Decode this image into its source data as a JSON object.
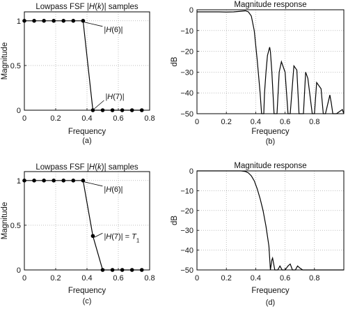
{
  "chart_data": [
    {
      "id": "a",
      "type": "line",
      "title_parts": [
        "Lowpass FSF |",
        "H",
        "(",
        "k",
        ")| samples"
      ],
      "xlabel": "Frequency",
      "ylabel": "Magnitude",
      "panel_label": "(a)",
      "xlim": [
        0,
        0.8
      ],
      "ylim": [
        0,
        1.1
      ],
      "xticks": [
        0,
        0.2,
        0.4,
        0.6,
        0.8
      ],
      "xtick_labels": [
        "0",
        "0.2",
        "0.4",
        "0.6",
        "0.8"
      ],
      "yticks": [
        0,
        0.5,
        1
      ],
      "ytick_labels": [
        "0",
        "0.5",
        "1"
      ],
      "grid": true,
      "markers": true,
      "series": [
        {
          "x": [
            0,
            0.0625,
            0.125,
            0.1875,
            0.25,
            0.3125,
            0.375,
            0.4375,
            0.5,
            0.5625,
            0.625,
            0.6875,
            0.75
          ],
          "y": [
            1,
            1,
            1,
            1,
            1,
            1,
            1,
            0,
            0,
            0,
            0,
            0,
            0
          ]
        }
      ],
      "annotations": [
        {
          "parts": [
            "|",
            "H",
            "(6)|"
          ],
          "x": 0.375,
          "y": 1
        },
        {
          "parts": [
            "|",
            "H",
            "(7)|"
          ],
          "x": 0.4375,
          "y": 0
        }
      ]
    },
    {
      "id": "b",
      "type": "line",
      "title": "Magnitude response",
      "xlabel": "Frequency",
      "ylabel": "dB",
      "panel_label": "(b)",
      "xlim": [
        0,
        1
      ],
      "ylim": [
        -50,
        0
      ],
      "xticks": [
        0,
        0.2,
        0.4,
        0.6,
        0.8
      ],
      "xtick_labels": [
        "0",
        "0.2",
        "0.4",
        "0.6",
        "0.8"
      ],
      "yticks": [
        0,
        -10,
        -20,
        -30,
        -40,
        -50
      ],
      "ytick_labels": [
        "0",
        "−10",
        "−20",
        "−30",
        "−40",
        "−50"
      ],
      "grid": true,
      "markers": false,
      "series": [
        {
          "x": [
            0,
            0.05,
            0.1,
            0.15,
            0.2,
            0.25,
            0.3,
            0.33,
            0.35,
            0.37,
            0.39,
            0.41,
            0.43,
            0.44,
            0.455,
            0.46,
            0.47,
            0.48,
            0.495,
            0.5,
            0.51,
            0.525,
            0.545,
            0.56,
            0.575,
            0.6,
            0.62,
            0.635,
            0.66,
            0.68,
            0.695,
            0.725,
            0.74,
            0.755,
            0.785,
            0.8,
            0.815,
            0.845,
            0.86,
            0.875,
            0.905,
            0.915,
            0.925,
            0.95,
            0.99,
            1.0
          ],
          "y": [
            -1,
            -1,
            -1,
            -1,
            -1.1,
            -1,
            -0.7,
            -0.5,
            -1,
            -3,
            -10,
            -24,
            -40,
            -50,
            -50,
            -40,
            -30,
            -22,
            -18,
            -20,
            -30,
            -50,
            -50,
            -30,
            -25,
            -30,
            -50,
            -50,
            -27,
            -29,
            -50,
            -50,
            -30,
            -33,
            -50,
            -50,
            -35,
            -38,
            -50,
            -50,
            -41,
            -45,
            -50,
            -50,
            -48,
            -50
          ]
        }
      ]
    },
    {
      "id": "c",
      "type": "line",
      "title_parts": [
        "Lowpass FSF |",
        "H",
        "(",
        "k",
        ")| samples"
      ],
      "xlabel": "Frequency",
      "ylabel": "Magnitude",
      "panel_label": "(c)",
      "xlim": [
        0,
        0.8
      ],
      "ylim": [
        0,
        1.1
      ],
      "xticks": [
        0,
        0.2,
        0.4,
        0.6,
        0.8
      ],
      "xtick_labels": [
        "0",
        "0.2",
        "0.4",
        "0.6",
        "0.8"
      ],
      "yticks": [
        0,
        0.5,
        1
      ],
      "ytick_labels": [
        "0",
        "0.5",
        "1"
      ],
      "grid": true,
      "markers": true,
      "series": [
        {
          "x": [
            0,
            0.0625,
            0.125,
            0.1875,
            0.25,
            0.3125,
            0.375,
            0.4375,
            0.5,
            0.5625,
            0.625,
            0.6875,
            0.75
          ],
          "y": [
            1,
            1,
            1,
            1,
            1,
            1,
            1,
            0.38,
            0,
            0,
            0,
            0,
            0
          ]
        }
      ],
      "annotations": [
        {
          "parts": [
            "|",
            "H",
            "(6)|"
          ],
          "x": 0.375,
          "y": 1
        },
        {
          "parts": [
            "|",
            "H",
            "(7)| = ",
            "T",
            "1"
          ],
          "x": 0.4375,
          "y": 0.38
        }
      ]
    },
    {
      "id": "d",
      "type": "line",
      "title": "Magnitude response",
      "xlabel": "Frequency",
      "ylabel": "dB",
      "panel_label": "(d)",
      "xlim": [
        0,
        1
      ],
      "ylim": [
        -50,
        0
      ],
      "xticks": [
        0,
        0.2,
        0.4,
        0.6,
        0.8
      ],
      "xtick_labels": [
        "0",
        "0.2",
        "0.4",
        "0.6",
        "0.8"
      ],
      "yticks": [
        0,
        -10,
        -20,
        -30,
        -40,
        -50
      ],
      "ytick_labels": [
        "0",
        "−10",
        "−20",
        "−30",
        "−40",
        "−50"
      ],
      "grid": true,
      "markers": false,
      "series": [
        {
          "x": [
            0,
            0.05,
            0.1,
            0.15,
            0.2,
            0.25,
            0.3,
            0.33,
            0.35,
            0.37,
            0.39,
            0.41,
            0.43,
            0.45,
            0.47,
            0.49,
            0.5,
            0.51,
            0.515,
            0.52,
            0.53,
            0.55,
            0.565,
            0.58,
            0.6,
            0.62,
            0.635,
            0.65,
            0.67,
            0.685,
            0.7,
            0.72,
            0.74,
            0.8,
            0.9,
            1.0
          ],
          "y": [
            0,
            0,
            0,
            0,
            0,
            0,
            0,
            -0.3,
            -1,
            -2.5,
            -5,
            -9,
            -14,
            -20,
            -28,
            -38,
            -50,
            -45,
            -44,
            -46,
            -50,
            -50,
            -48,
            -50,
            -50,
            -48,
            -47,
            -50,
            -50,
            -48,
            -49,
            -50,
            -50,
            -50,
            -50,
            -50
          ]
        }
      ]
    }
  ]
}
